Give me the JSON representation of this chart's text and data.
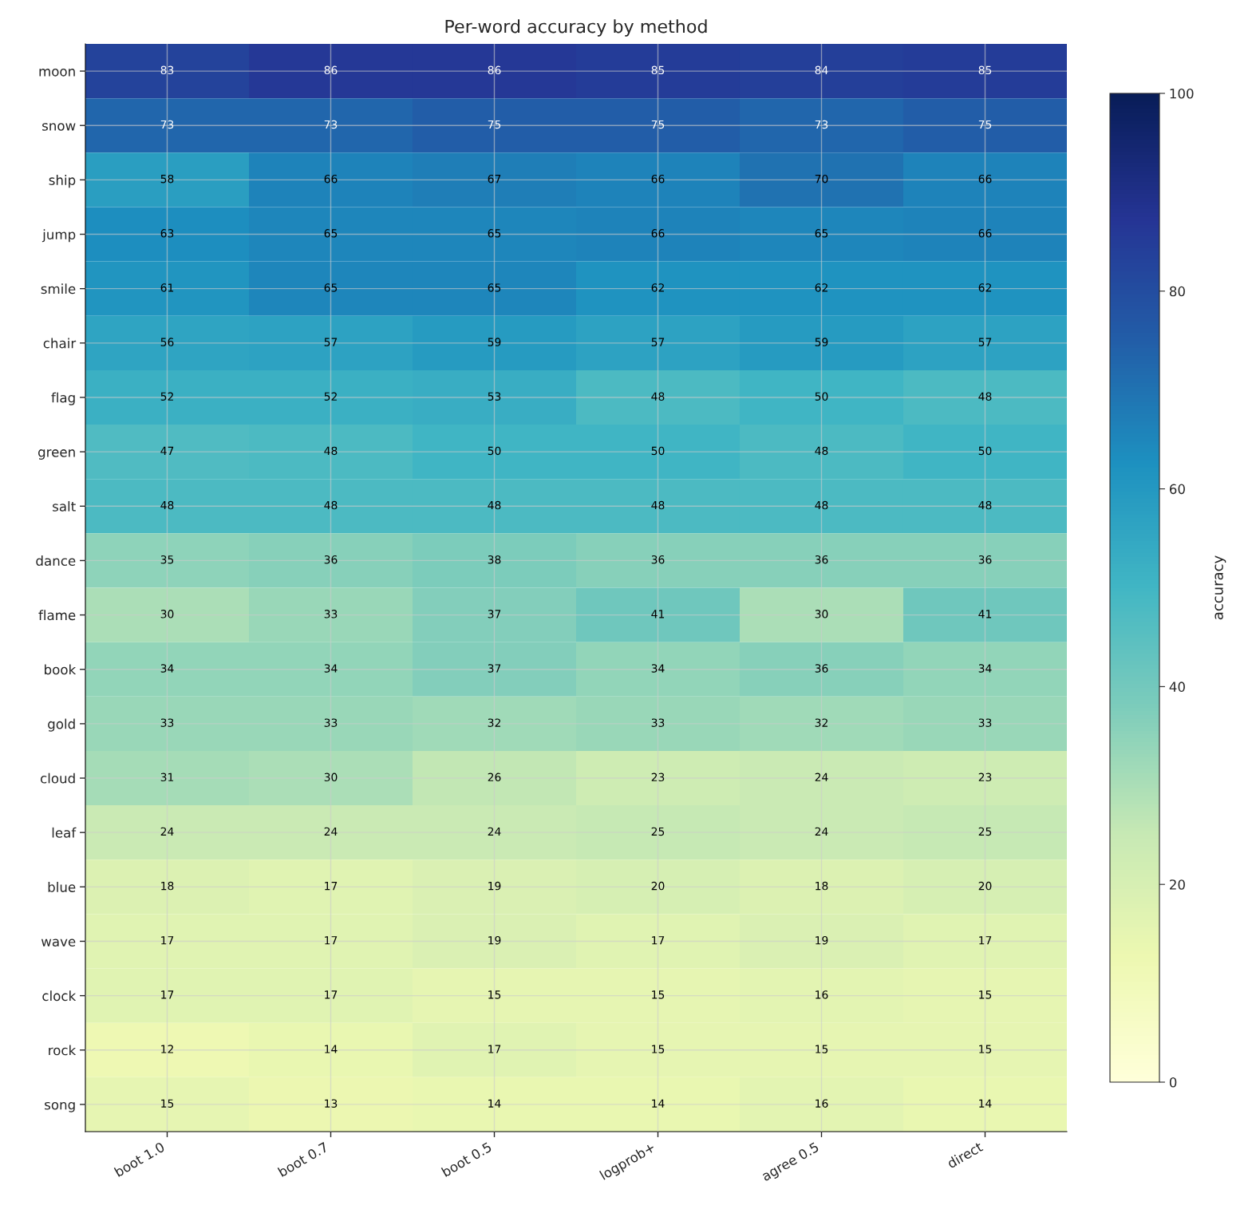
{
  "chart_data": {
    "type": "heatmap",
    "title": "Per-word accuracy by method",
    "clabel": "accuracy",
    "categories": [
      "boot 1.0",
      "boot 0.7",
      "boot 0.5",
      "logprob+",
      "agree 0.5",
      "direct"
    ],
    "y_categories": [
      "moon",
      "snow",
      "ship",
      "jump",
      "smile",
      "chair",
      "flag",
      "green",
      "salt",
      "dance",
      "flame",
      "book",
      "gold",
      "cloud",
      "leaf",
      "blue",
      "wave",
      "clock",
      "rock",
      "song"
    ],
    "cells": [
      [
        83,
        86,
        86,
        85,
        84,
        85
      ],
      [
        73,
        73,
        75,
        75,
        73,
        75
      ],
      [
        58,
        66,
        67,
        66,
        70,
        66
      ],
      [
        63,
        65,
        65,
        66,
        65,
        66
      ],
      [
        61,
        65,
        65,
        62,
        62,
        62
      ],
      [
        56,
        57,
        59,
        57,
        59,
        57
      ],
      [
        52,
        52,
        53,
        48,
        50,
        48
      ],
      [
        47,
        48,
        50,
        50,
        48,
        50
      ],
      [
        48,
        48,
        48,
        48,
        48,
        48
      ],
      [
        35,
        36,
        38,
        36,
        36,
        36
      ],
      [
        30,
        33,
        37,
        41,
        30,
        41
      ],
      [
        34,
        34,
        37,
        34,
        36,
        34
      ],
      [
        33,
        33,
        32,
        33,
        32,
        33
      ],
      [
        31,
        30,
        26,
        23,
        24,
        23
      ],
      [
        24,
        24,
        24,
        25,
        24,
        25
      ],
      [
        18,
        17,
        19,
        20,
        18,
        20
      ],
      [
        17,
        17,
        19,
        17,
        19,
        17
      ],
      [
        17,
        17,
        15,
        15,
        16,
        15
      ],
      [
        12,
        14,
        17,
        15,
        15,
        15
      ],
      [
        15,
        13,
        14,
        14,
        16,
        14
      ]
    ],
    "clim": [
      0,
      100
    ],
    "cticks": [
      0,
      20,
      40,
      60,
      80,
      100
    ],
    "grid": true,
    "data_labels": true
  }
}
